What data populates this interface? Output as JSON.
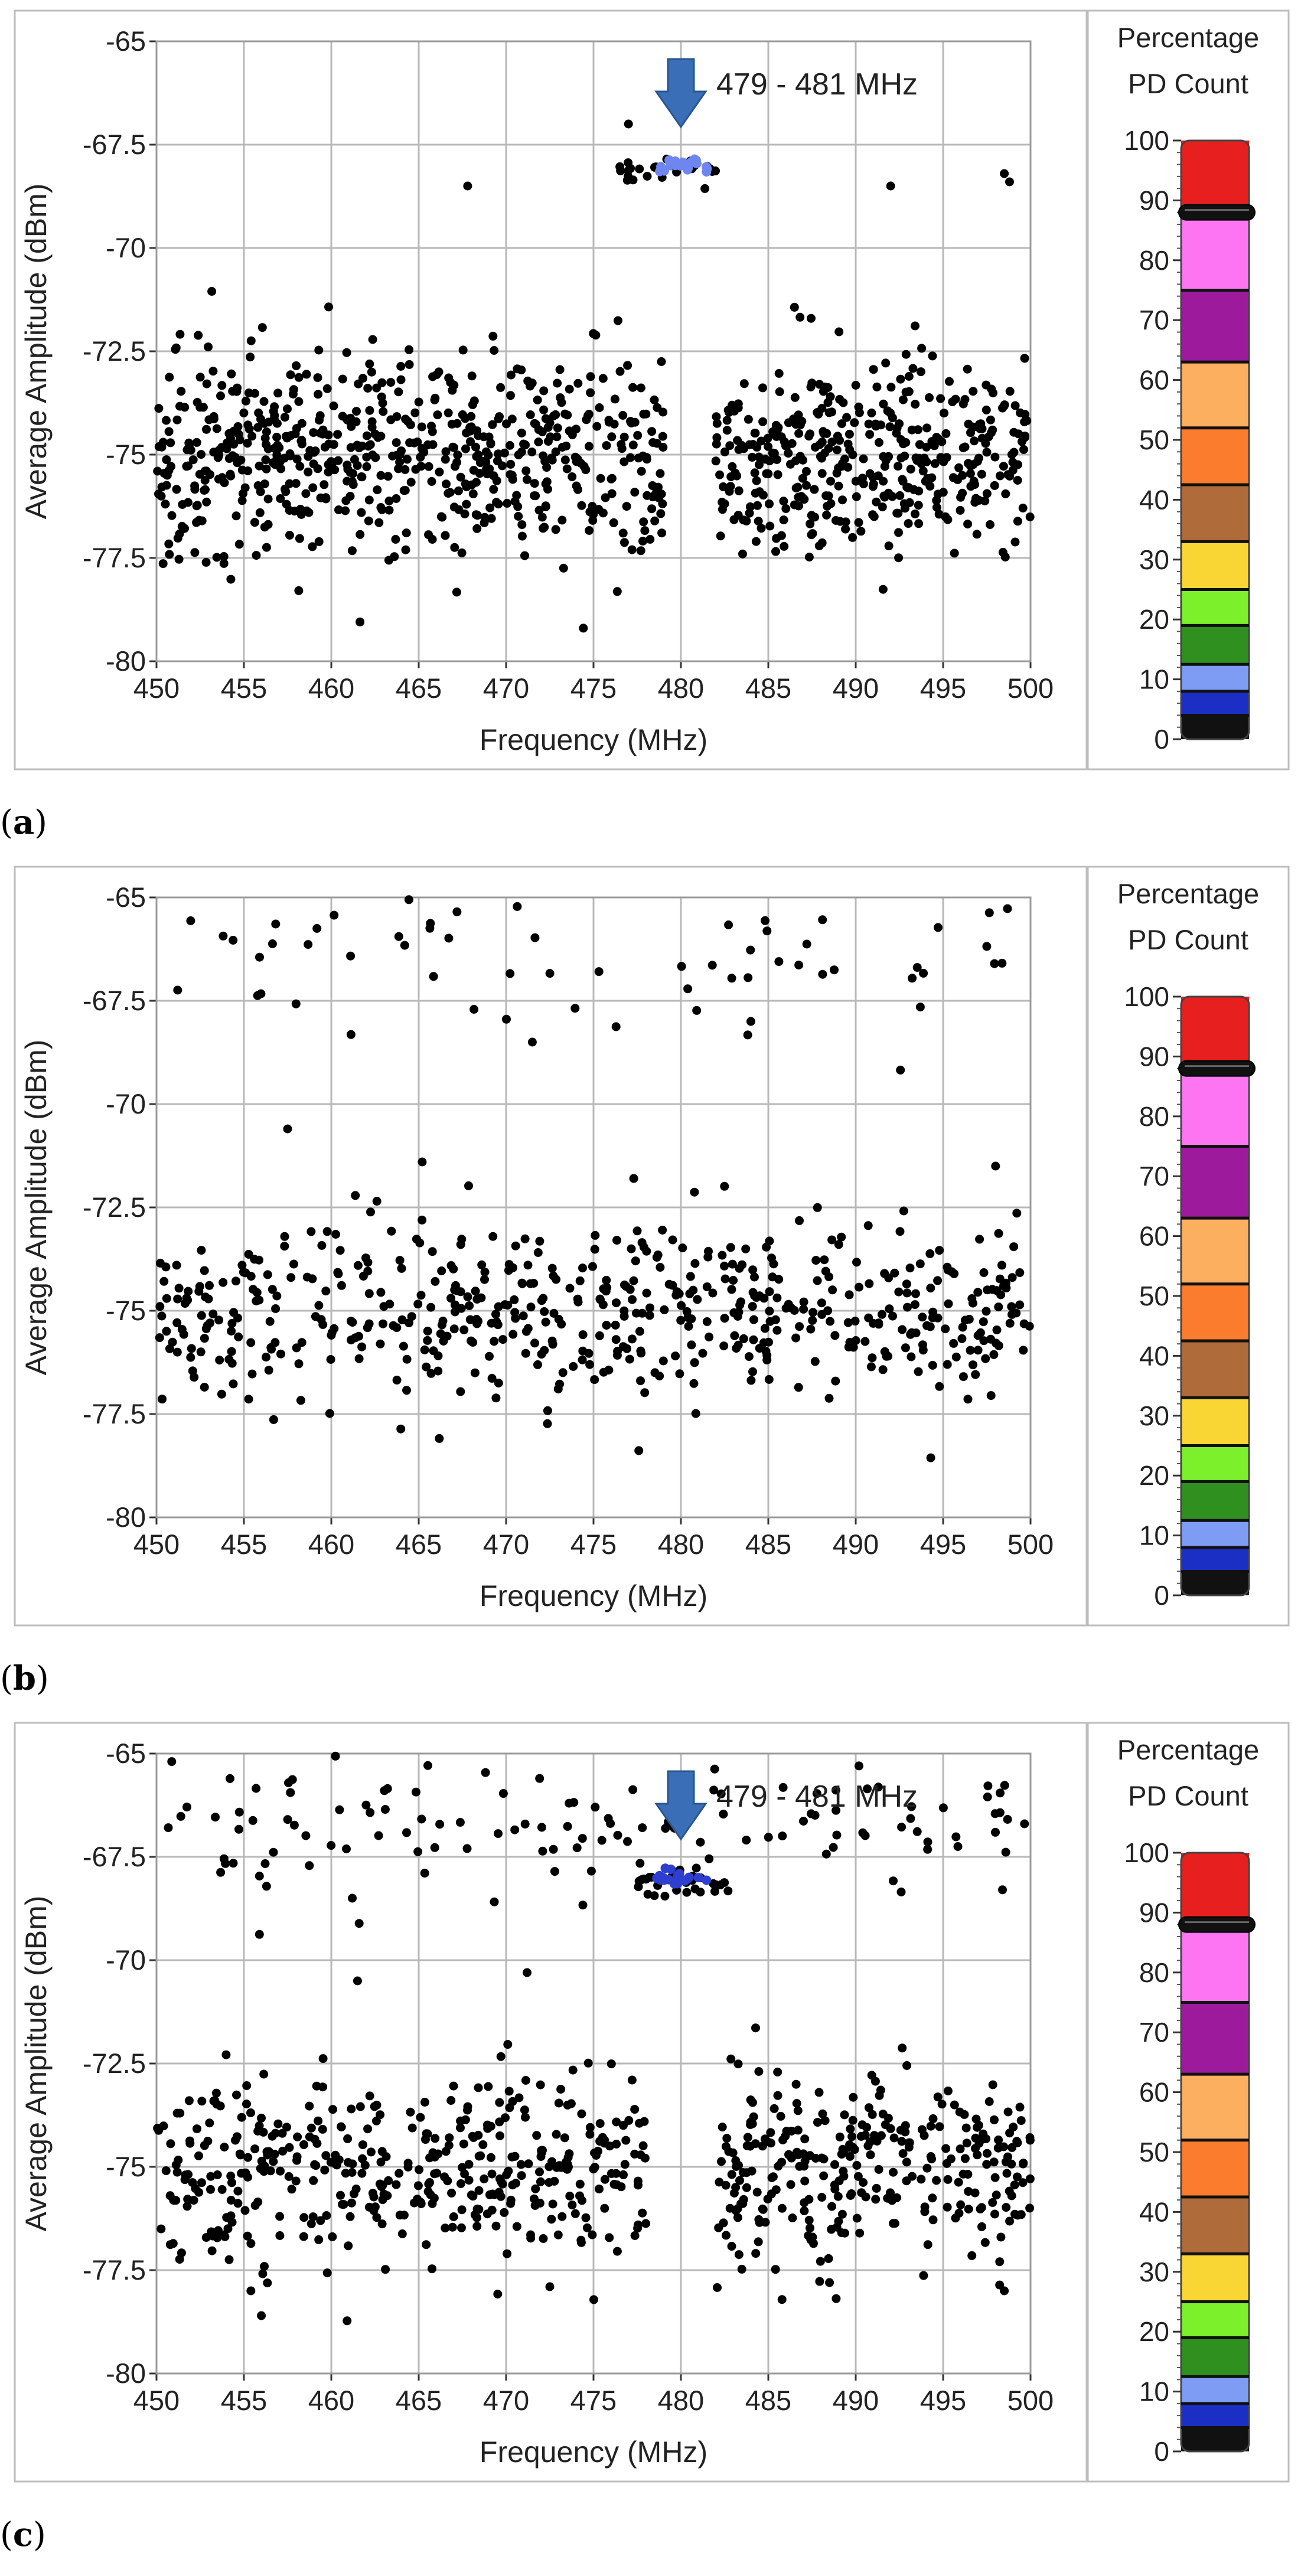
{
  "panels": [
    {
      "label": "a",
      "chart_data": {
        "type": "scatter",
        "xlabel": "Frequency (MHz)",
        "ylabel": "Average Amplitude (dBm)",
        "xlim": [
          450,
          500
        ],
        "ylim": [
          -80,
          -65
        ],
        "xticks": [
          450,
          455,
          460,
          465,
          470,
          475,
          480,
          485,
          490,
          495,
          500
        ],
        "xtick_labels": [
          "450",
          "455",
          "460",
          "465",
          "470",
          "475",
          "480",
          "485",
          "490",
          "495",
          "500"
        ],
        "yticks": [
          -65,
          -67.5,
          -70,
          -72.5,
          -75,
          -77.5,
          -80
        ],
        "ytick_labels": [
          "-65",
          "-67.5",
          "-70",
          "-72.5",
          "-75",
          "-77.5",
          "-80"
        ],
        "grid": true,
        "annotation": {
          "text": "479 - 481 MHz",
          "x": 480,
          "y": -67.2
        },
        "highlight_cluster": {
          "x_range": [
            478.5,
            481.5
          ],
          "y": -68.0,
          "color": "#6f86f0"
        },
        "series": [
          {
            "name": "broadband-band-1",
            "x_range": [
              450,
              479
            ],
            "y_center": -75,
            "y_spread": 1.6,
            "count": 640,
            "color": "#000000"
          },
          {
            "name": "broadband-band-2",
            "x_range": [
              482,
              500
            ],
            "y_center": -75,
            "y_spread": 1.5,
            "count": 400,
            "color": "#000000"
          },
          {
            "name": "narrowband",
            "x_range": [
              476.5,
              482
            ],
            "y_center": -68.1,
            "y_spread": 0.2,
            "count": 30,
            "color": "#000000"
          }
        ],
        "outliers": [
          [
            467.8,
            -68.5
          ],
          [
            492,
            -68.5
          ],
          [
            498.5,
            -68.2
          ],
          [
            498.8,
            -68.4
          ],
          [
            477,
            -67.0
          ]
        ]
      }
    },
    {
      "label": "b",
      "chart_data": {
        "type": "scatter",
        "xlabel": "Frequency (MHz)",
        "ylabel": "Average Amplitude (dBm)",
        "xlim": [
          450,
          500
        ],
        "ylim": [
          -80,
          -65
        ],
        "xticks": [
          450,
          455,
          460,
          465,
          470,
          475,
          480,
          485,
          490,
          495,
          500
        ],
        "xtick_labels": [
          "450",
          "455",
          "460",
          "465",
          "470",
          "475",
          "480",
          "485",
          "490",
          "495",
          "500"
        ],
        "yticks": [
          -65,
          -67.5,
          -70,
          -72.5,
          -75,
          -77.5,
          -80
        ],
        "ytick_labels": [
          "-65",
          "-67.5",
          "-70",
          "-72.5",
          "-75",
          "-77.5",
          "-80"
        ],
        "grid": true,
        "series": [
          {
            "name": "broadband",
            "x_range": [
              450,
              500
            ],
            "y_center": -75,
            "y_spread": 1.5,
            "count": 560,
            "color": "#000000"
          },
          {
            "name": "upper-scatter",
            "x_range": [
              450,
              500
            ],
            "y_center": -66.4,
            "y_spread": 0.7,
            "count": 60,
            "color": "#000000"
          }
        ],
        "outliers": [
          [
            457.5,
            -70.6
          ],
          [
            465.2,
            -71.4
          ],
          [
            477.3,
            -71.8
          ],
          [
            471.5,
            -68.5
          ],
          [
            484,
            -68.0
          ],
          [
            498,
            -71.5
          ]
        ]
      }
    },
    {
      "label": "c",
      "chart_data": {
        "type": "scatter",
        "xlabel": "Frequency (MHz)",
        "ylabel": "Average Amplitude (dBm)",
        "xlim": [
          450,
          500
        ],
        "ylim": [
          -80,
          -65
        ],
        "xticks": [
          450,
          455,
          460,
          465,
          470,
          475,
          480,
          485,
          490,
          495,
          500
        ],
        "xtick_labels": [
          "450",
          "455",
          "460",
          "465",
          "470",
          "475",
          "480",
          "485",
          "490",
          "495",
          "500"
        ],
        "yticks": [
          -65,
          -67.5,
          -70,
          -72.5,
          -75,
          -77.5,
          -80
        ],
        "ytick_labels": [
          "-65",
          "-67.5",
          "-70",
          "-72.5",
          "-75",
          "-77.5",
          "-80"
        ],
        "grid": true,
        "annotation": {
          "text": "479 - 481 MHz",
          "x": 480,
          "y": -67.2
        },
        "highlight_cluster": {
          "x_range": [
            478.5,
            481.5
          ],
          "y": -68.0,
          "color": "#2e3fd0"
        },
        "series": [
          {
            "name": "broadband-band-1",
            "x_range": [
              450,
              478
            ],
            "y_center": -75,
            "y_spread": 1.5,
            "count": 420,
            "color": "#000000"
          },
          {
            "name": "broadband-band-2",
            "x_range": [
              482,
              500
            ],
            "y_center": -75,
            "y_spread": 1.5,
            "count": 300,
            "color": "#000000"
          },
          {
            "name": "upper-scatter",
            "x_range": [
              450,
              500
            ],
            "y_center": -66.5,
            "y_spread": 0.8,
            "count": 130,
            "color": "#000000"
          },
          {
            "name": "narrowband",
            "x_range": [
              477.5,
              482.5
            ],
            "y_center": -68.1,
            "y_spread": 0.2,
            "count": 26,
            "color": "#000000"
          }
        ],
        "outliers": [
          [
            461.5,
            -70.5
          ],
          [
            471.2,
            -70.3
          ],
          [
            461.2,
            -68.5
          ],
          [
            455.4,
            -78.0
          ],
          [
            456,
            -78.6
          ],
          [
            472.5,
            -77.9
          ],
          [
            488.5,
            -77.8
          ],
          [
            498.5,
            -78.0
          ]
        ]
      }
    }
  ],
  "colorbar": {
    "title_line1": "Percentage",
    "title_line2": "PD Count",
    "ticks": [
      "100",
      "90",
      "80",
      "70",
      "60",
      "50",
      "40",
      "30",
      "20",
      "10",
      "0"
    ],
    "segments": [
      {
        "from": 0,
        "to": 4,
        "color": "#111111"
      },
      {
        "from": 4,
        "to": 8,
        "color": "#1c2fc4"
      },
      {
        "from": 8,
        "to": 12.5,
        "color": "#7f9cf5"
      },
      {
        "from": 12.5,
        "to": 19,
        "color": "#2f8f1f"
      },
      {
        "from": 19,
        "to": 25,
        "color": "#7cf02a"
      },
      {
        "from": 25,
        "to": 33,
        "color": "#fad635"
      },
      {
        "from": 33,
        "to": 42.5,
        "color": "#b06b3a"
      },
      {
        "from": 42.5,
        "to": 52,
        "color": "#fb7c2c"
      },
      {
        "from": 52,
        "to": 63,
        "color": "#fcb05f"
      },
      {
        "from": 63,
        "to": 75,
        "color": "#9e1a9c"
      },
      {
        "from": 75,
        "to": 88,
        "color": "#fd75f3"
      },
      {
        "from": 88,
        "to": 100,
        "color": "#e81f1f"
      }
    ],
    "marker_lines": [
      4,
      8,
      12.5,
      19,
      25,
      33,
      42.5,
      52,
      63,
      75
    ],
    "slider_value": 88
  }
}
